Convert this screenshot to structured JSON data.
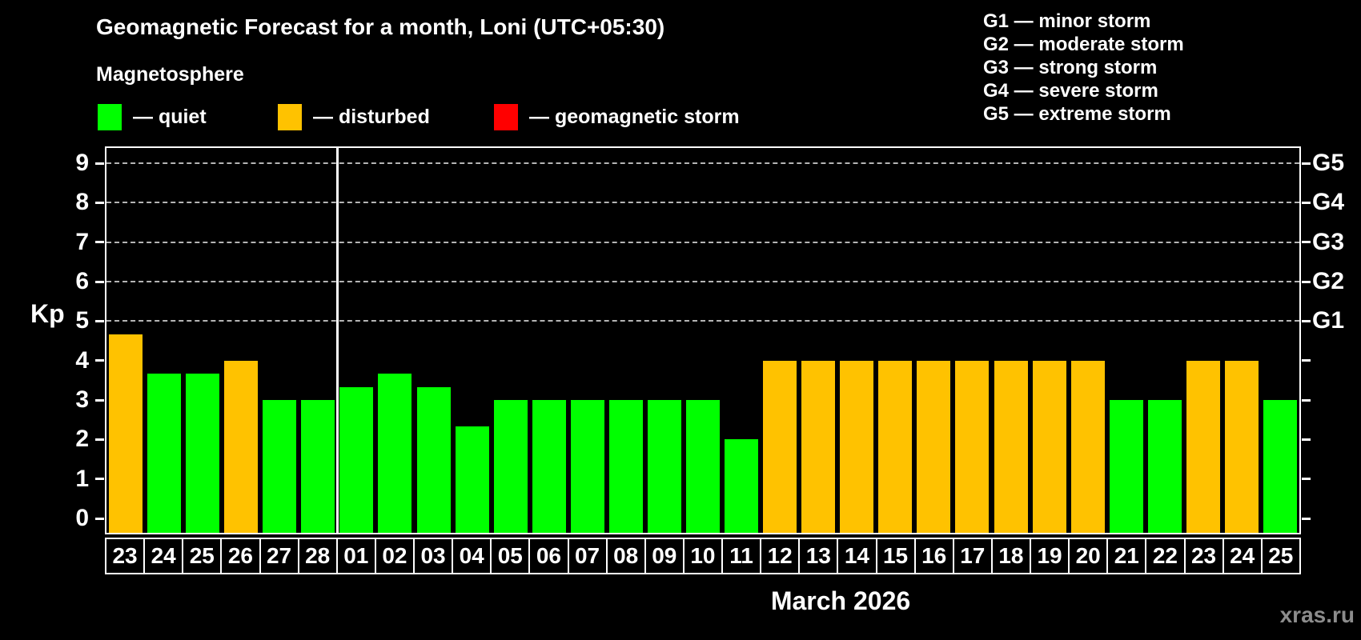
{
  "title": "Geomagnetic Forecast for a month, Loni (UTC+05:30)",
  "subtitle": "Magnetosphere",
  "legend": {
    "items": [
      {
        "label": "— quiet",
        "color": "#00ff00"
      },
      {
        "label": "— disturbed",
        "color": "#ffc200"
      },
      {
        "label": "— geomagnetic storm",
        "color": "#ff0000"
      }
    ]
  },
  "storm_legend": [
    {
      "label": "G1 — minor storm"
    },
    {
      "label": "G2 — moderate storm"
    },
    {
      "label": "G3 — strong storm"
    },
    {
      "label": "G4 — severe storm"
    },
    {
      "label": "G5 — extreme storm"
    }
  ],
  "watermark": "xras.ru",
  "chart_data": {
    "type": "bar",
    "title": "Geomagnetic Forecast for a month, Loni (UTC+05:30)",
    "xlabel": "March 2026",
    "ylabel": "Kp",
    "ylim": [
      0,
      9
    ],
    "grid": "dashed horizontal lines at Kp 5-9 only",
    "legend_position": "top-left",
    "categories": [
      "23",
      "24",
      "25",
      "26",
      "27",
      "28",
      "01",
      "02",
      "03",
      "04",
      "05",
      "06",
      "07",
      "08",
      "09",
      "10",
      "11",
      "12",
      "13",
      "14",
      "15",
      "16",
      "17",
      "18",
      "19",
      "20",
      "21",
      "22",
      "23",
      "24",
      "25"
    ],
    "values": [
      4.67,
      3.67,
      3.67,
      4.0,
      3.0,
      3.0,
      3.33,
      3.67,
      3.33,
      2.33,
      3.0,
      3.0,
      3.0,
      3.0,
      3.0,
      3.0,
      2.0,
      4.0,
      4.0,
      4.0,
      4.0,
      4.0,
      4.0,
      4.0,
      4.0,
      4.0,
      3.0,
      3.0,
      4.0,
      4.0,
      3.0
    ],
    "thresholds": {
      "disturbed": 4,
      "storm": 5
    },
    "gridlines_kp": [
      5,
      6,
      7,
      8,
      9
    ],
    "right_axis": [
      {
        "label": "G5",
        "kp": 9
      },
      {
        "label": "G4",
        "kp": 8
      },
      {
        "label": "G3",
        "kp": 7
      },
      {
        "label": "G2",
        "kp": 6
      },
      {
        "label": "G1",
        "kp": 5
      }
    ],
    "y_ticks": [
      0,
      1,
      2,
      3,
      4,
      5,
      6,
      7,
      8,
      9
    ],
    "month_separator_index": 6
  }
}
